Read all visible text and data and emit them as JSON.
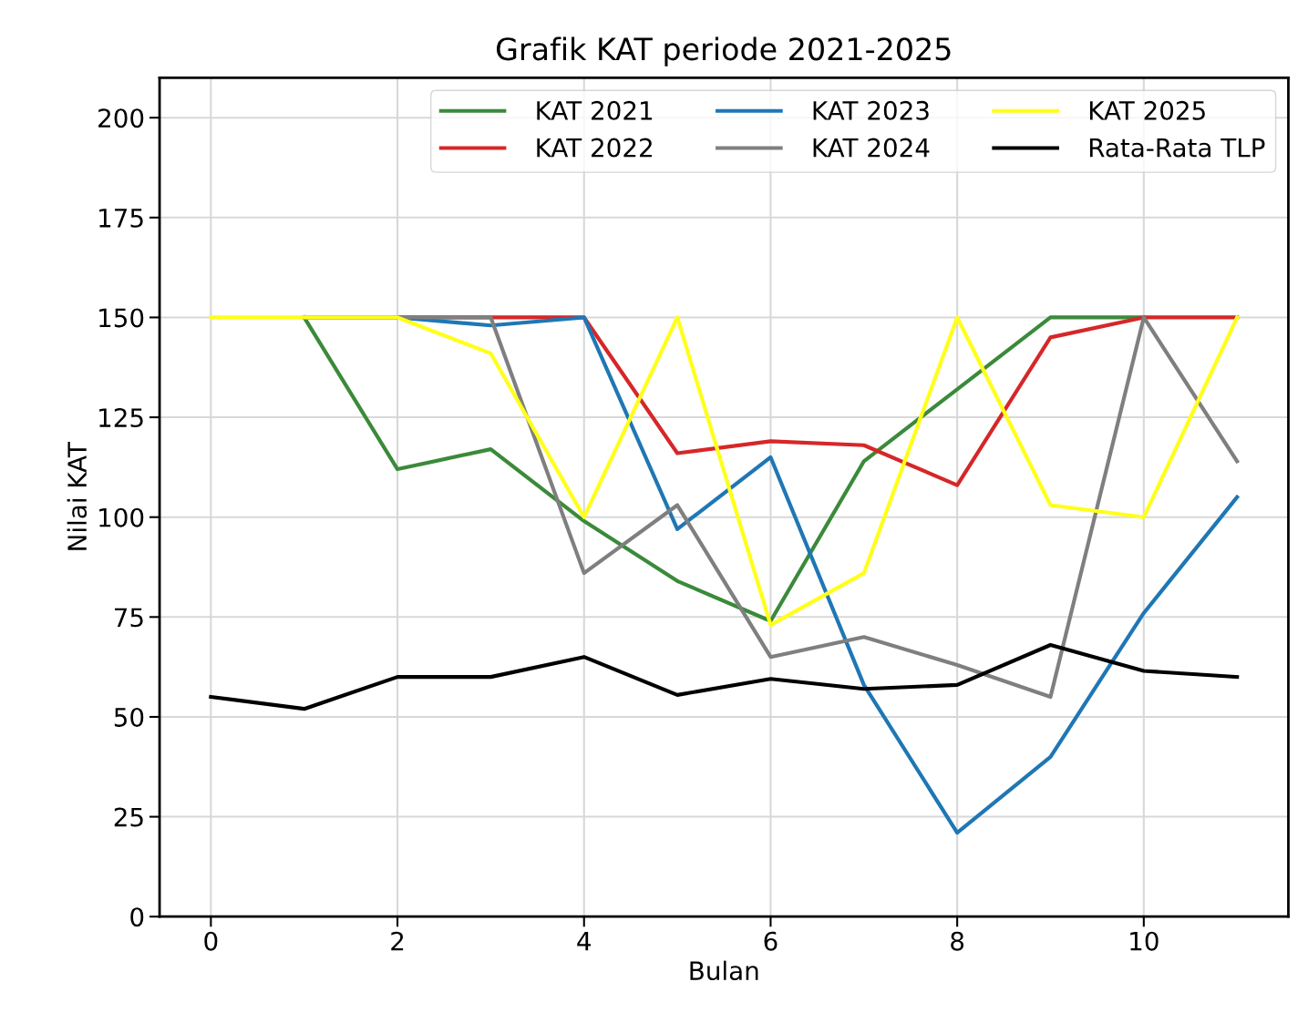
{
  "chart_data": {
    "type": "line",
    "title": "Grafik KAT periode 2021-2025",
    "xlabel": "Bulan",
    "ylabel": "Nilai KAT",
    "x": [
      0,
      1,
      2,
      3,
      4,
      5,
      6,
      7,
      8,
      9,
      10,
      11
    ],
    "series": [
      {
        "name": "KAT 2021",
        "color": "#3a8a3a",
        "values": [
          null,
          150,
          112,
          117,
          99,
          84,
          74,
          114,
          132,
          150,
          150,
          null
        ]
      },
      {
        "name": "KAT 2022",
        "color": "#d62728",
        "values": [
          null,
          null,
          150,
          150,
          150,
          116,
          119,
          118,
          108,
          145,
          150,
          150
        ]
      },
      {
        "name": "KAT 2023",
        "color": "#1f77b4",
        "values": [
          null,
          150,
          150,
          148,
          150,
          97,
          115,
          58,
          21,
          40,
          76,
          105
        ]
      },
      {
        "name": "KAT 2024",
        "color": "#7f7f7f",
        "values": [
          null,
          150,
          150,
          150,
          86,
          103,
          65,
          70,
          63,
          55,
          150,
          114
        ]
      },
      {
        "name": "KAT 2025",
        "color": "#ffff1a",
        "values": [
          150,
          150,
          150,
          141,
          100,
          150,
          73,
          86,
          150,
          103,
          100,
          150
        ]
      },
      {
        "name": "Rata-Rata TLP",
        "color": "#000000",
        "values": [
          55,
          52,
          60,
          60,
          65,
          55.5,
          59.5,
          57,
          58,
          68,
          61.5,
          60
        ]
      }
    ],
    "xlim": [
      -0.55,
      11.55
    ],
    "ylim": [
      0,
      210
    ],
    "xticks": [
      0,
      2,
      4,
      6,
      8,
      10
    ],
    "yticks": [
      0,
      25,
      50,
      75,
      100,
      125,
      150,
      175,
      200
    ],
    "grid": true,
    "legend": "top right",
    "marker": "none",
    "line_style": "solid"
  }
}
